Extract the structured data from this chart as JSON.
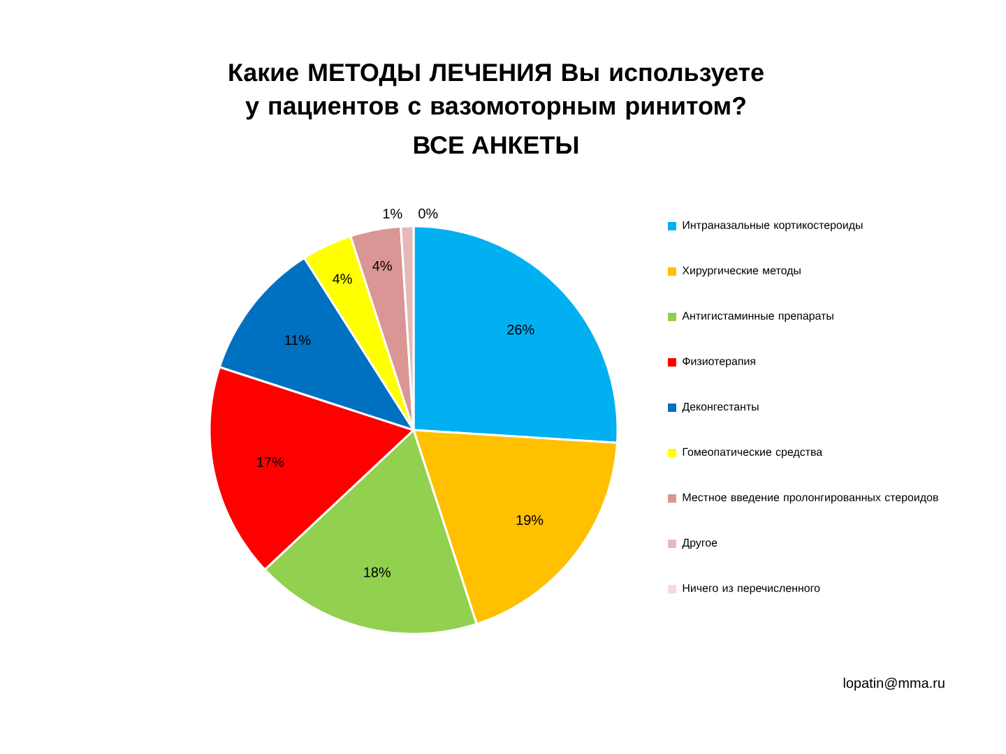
{
  "chart_data": {
    "type": "pie",
    "title": "Какие МЕТОДЫ ЛЕЧЕНИЯ Вы используете у пациентов с вазомоторным ринитом?",
    "subtitle": "ВСЕ АНКЕТЫ",
    "categories": [
      "Интраназальные кортикостероиды",
      "Хирургические методы",
      "Антигистаминные препараты",
      "Физиотерапия",
      "Деконгестанты",
      "Гомеопатические средства",
      "Местное введение пролонгированных стероидов",
      "Другое",
      "Ничего из перечисленного"
    ],
    "values": [
      26,
      19,
      18,
      17,
      11,
      4,
      4,
      1,
      0
    ],
    "value_labels": [
      "26%",
      "19%",
      "18%",
      "17%",
      "11%",
      "4%",
      "4%",
      "1%",
      "0%"
    ],
    "colors": [
      "#00b0f0",
      "#ffc000",
      "#92d050",
      "#ff0000",
      "#0070c0",
      "#ffff00",
      "#d99694",
      "#e6b9b8",
      "#f2dcdb"
    ],
    "legend": "right",
    "annotations": [
      "lopatin@mma.ru"
    ]
  }
}
